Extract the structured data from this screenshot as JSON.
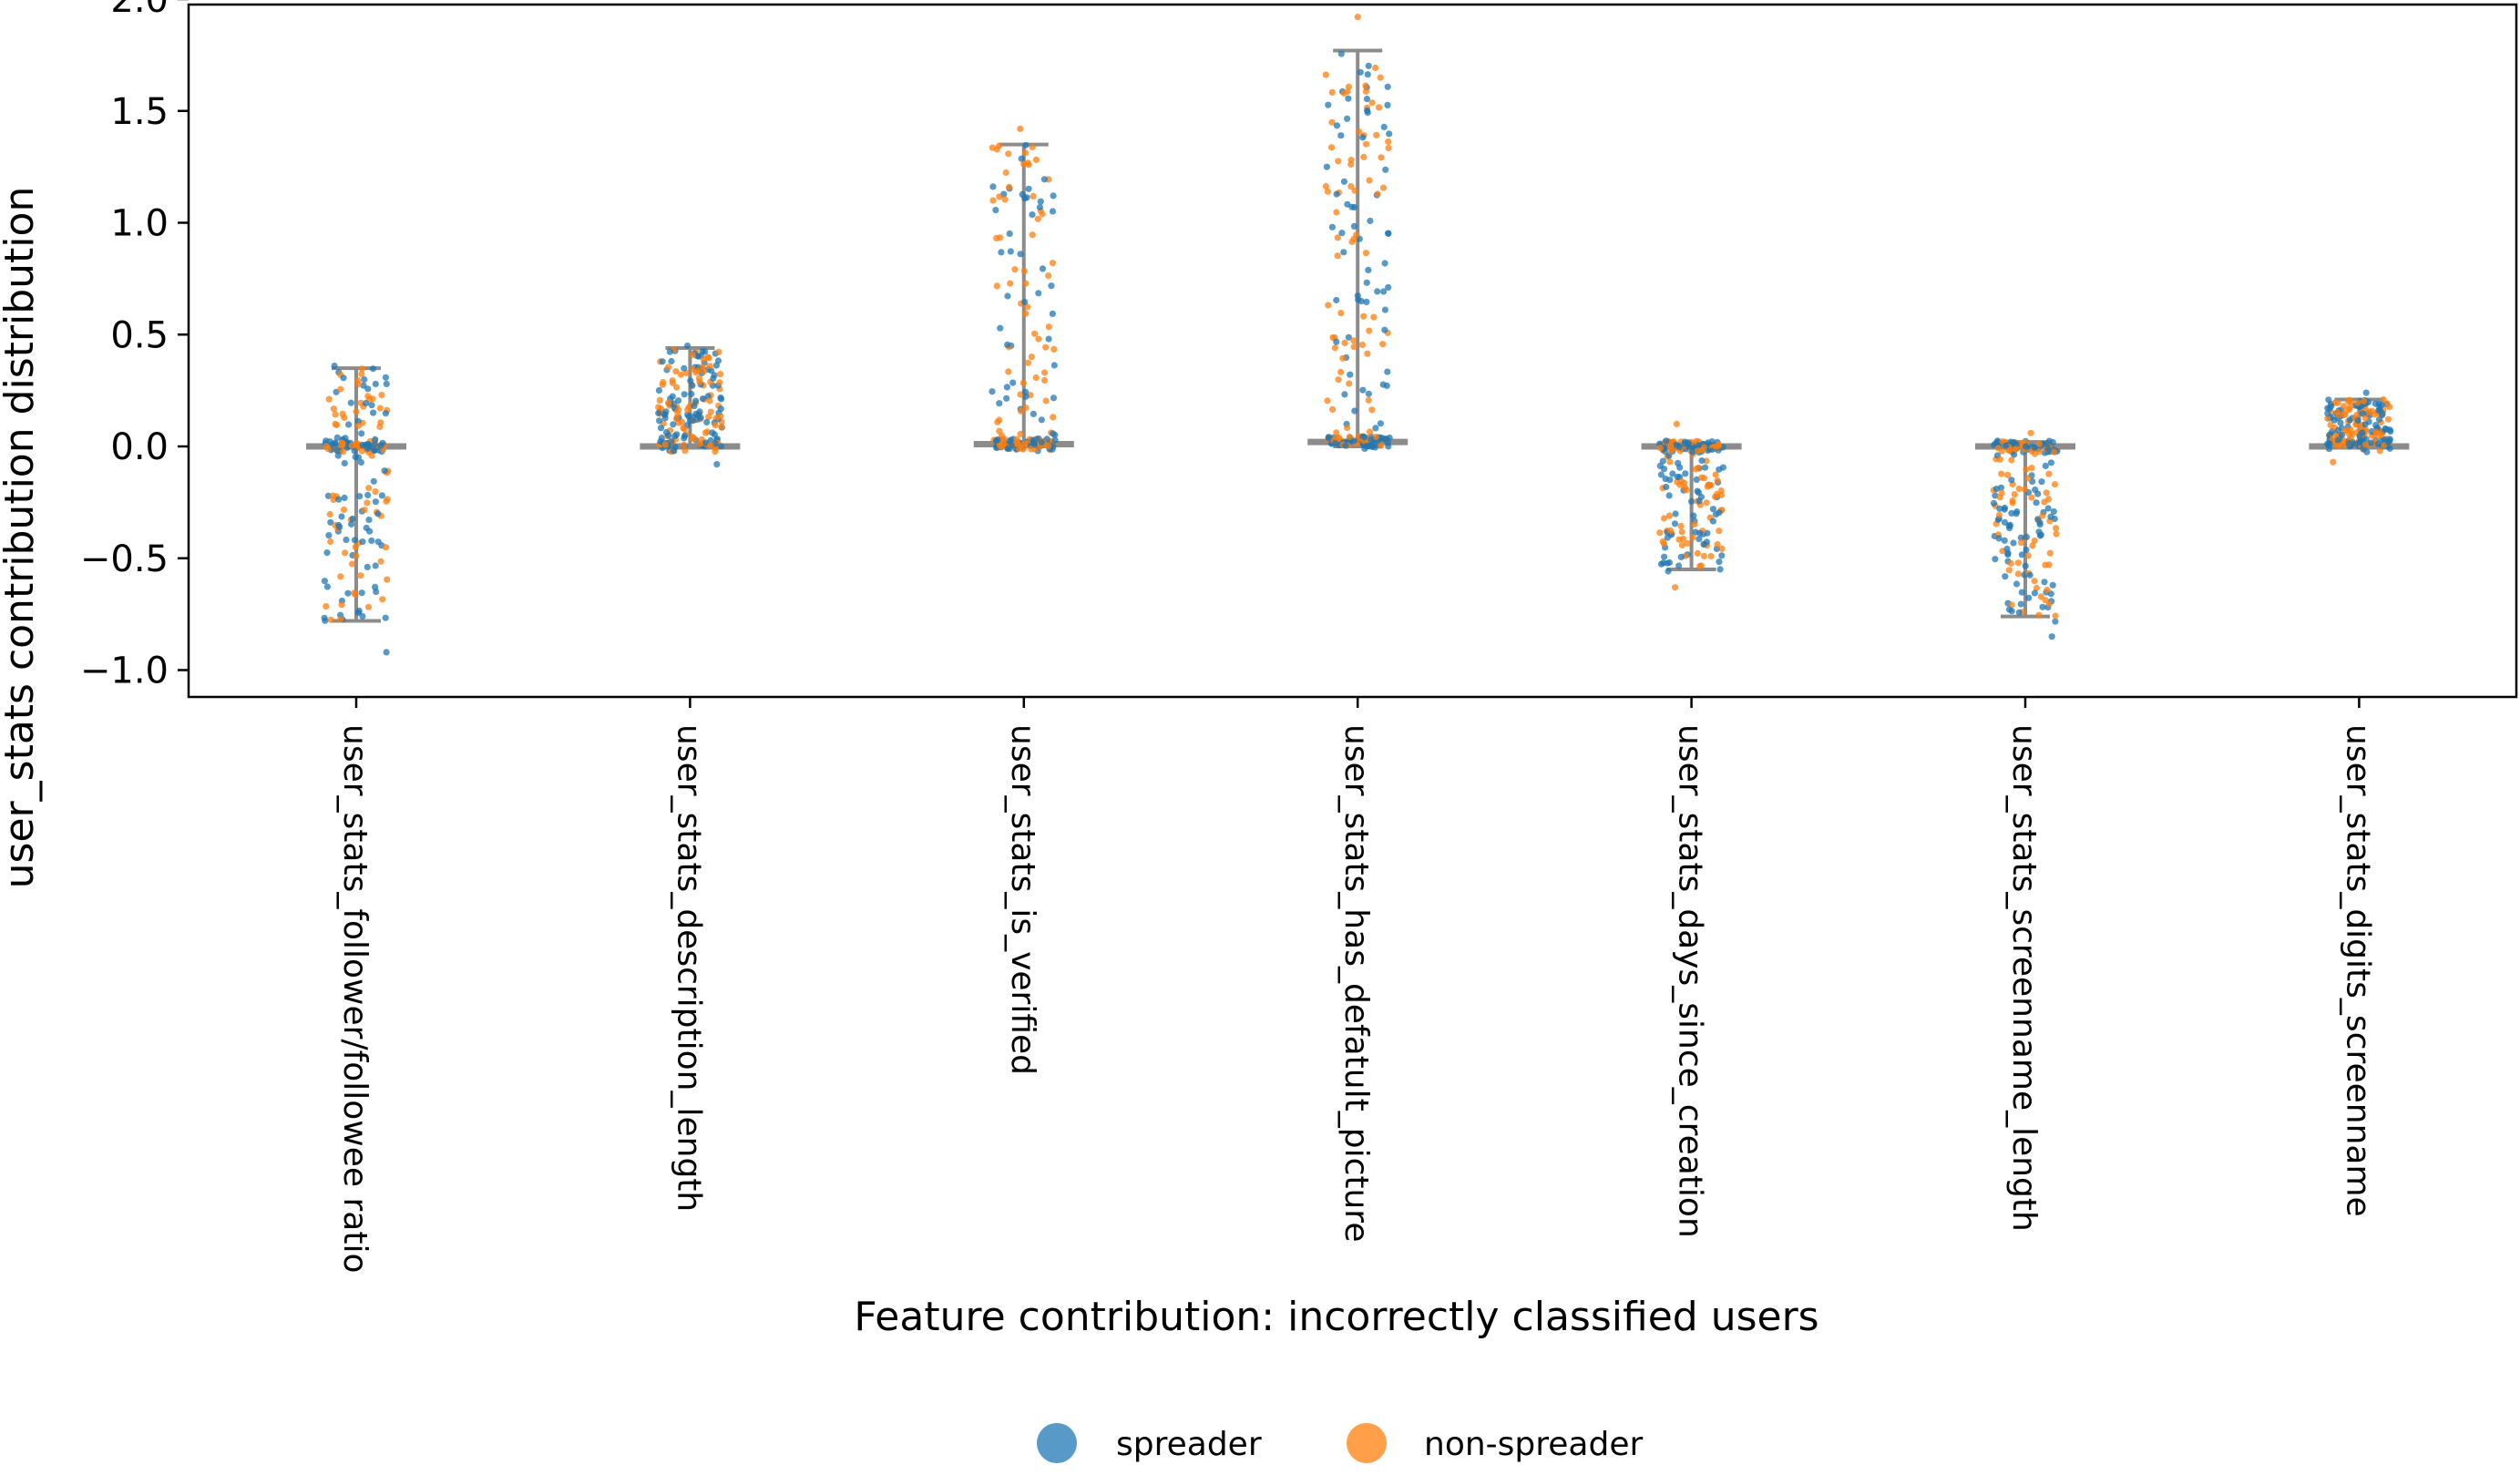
{
  "chart_data": {
    "type": "scatter",
    "subtype": "strip-plot-with-range-bars",
    "title": "",
    "xlabel": "Feature contribution: incorrectly classified users",
    "ylabel": "user_stats contribution distribution",
    "ylim": [
      -1.05,
      2.02
    ],
    "yticks": [
      -1.0,
      -0.5,
      0.0,
      0.5,
      1.0,
      1.5,
      2.0
    ],
    "ytick_labels": [
      "−1.0",
      "−0.5",
      "0.0",
      "0.5",
      "1.0",
      "1.5",
      "2.0"
    ],
    "categories": [
      "user_stats_follower/followee ratio",
      "user_stats_description_length",
      "user_stats_is_verified",
      "user_stats_has_defatult_picture",
      "user_stats_days_since_creation",
      "user_stats_screenname_length",
      "user_stats_digits_screenname"
    ],
    "grid": false,
    "legend": {
      "placement": "bottom-center",
      "columns": 2
    },
    "series": [
      {
        "name": "spreader",
        "color": "#1f77b4"
      },
      {
        "name": "non-spreader",
        "color": "#ff7f0e"
      }
    ],
    "range_bar_color": "#8c8c8c",
    "distributions": [
      {
        "category": "user_stats_follower/followee ratio",
        "min": -0.92,
        "max": 0.36,
        "whisker_low": -0.78,
        "whisker_high": 0.35,
        "median": 0.0,
        "cluster_at_zero": 0.3
      },
      {
        "category": "user_stats_description_length",
        "min": -0.08,
        "max": 0.45,
        "whisker_low": 0.0,
        "whisker_high": 0.44,
        "median": 0.0,
        "cluster_at_zero": 0.15
      },
      {
        "category": "user_stats_is_verified",
        "min": -0.02,
        "max": 1.42,
        "whisker_low": 0.0,
        "whisker_high": 1.35,
        "median": 0.01,
        "cluster_at_zero": 0.45
      },
      {
        "category": "user_stats_has_defatult_picture",
        "min": -0.01,
        "max": 1.92,
        "whisker_low": 0.0,
        "whisker_high": 1.77,
        "median": 0.02,
        "cluster_at_zero": 0.35
      },
      {
        "category": "user_stats_days_since_creation",
        "min": -0.63,
        "max": 0.1,
        "whisker_low": -0.55,
        "whisker_high": 0.01,
        "median": 0.0,
        "cluster_at_zero": 0.3
      },
      {
        "category": "user_stats_screenname_length",
        "min": -0.85,
        "max": 0.06,
        "whisker_low": -0.76,
        "whisker_high": 0.02,
        "median": 0.0,
        "cluster_at_zero": 0.3
      },
      {
        "category": "user_stats_digits_screenname",
        "min": -0.07,
        "max": 0.24,
        "whisker_low": 0.0,
        "whisker_high": 0.21,
        "median": 0.0,
        "cluster_at_zero": 0.1
      }
    ]
  }
}
